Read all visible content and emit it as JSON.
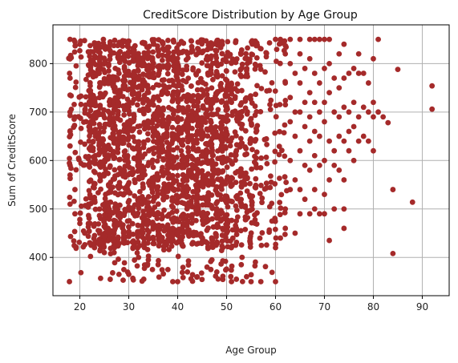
{
  "chart_data": {
    "type": "scatter",
    "title": "CreditScore Distribution by Age Group",
    "xlabel": "Age Group",
    "ylabel": "Sum of CreditScore",
    "xlim": [
      14.5,
      95.5
    ],
    "ylim": [
      321,
      880
    ],
    "xticks": [
      20,
      30,
      40,
      50,
      60,
      70,
      80,
      90
    ],
    "yticks": [
      400,
      500,
      600,
      700,
      800
    ],
    "grid": true,
    "point_color": "#a52a2a",
    "dense_region": {
      "age_min": 18,
      "age_max": 62,
      "score_min": 350,
      "score_max": 850,
      "note": "points overlap into a near-solid block"
    },
    "points": [
      {
        "x": 18,
        "y": 850
      },
      {
        "x": 18,
        "y": 810
      },
      {
        "x": 18,
        "y": 770
      },
      {
        "x": 18,
        "y": 735
      },
      {
        "x": 18,
        "y": 700
      },
      {
        "x": 18,
        "y": 660
      },
      {
        "x": 18,
        "y": 630
      },
      {
        "x": 18,
        "y": 590
      },
      {
        "x": 18,
        "y": 570
      },
      {
        "x": 18,
        "y": 510
      },
      {
        "x": 19,
        "y": 845
      },
      {
        "x": 19,
        "y": 690
      },
      {
        "x": 19,
        "y": 540
      },
      {
        "x": 19,
        "y": 490
      },
      {
        "x": 20,
        "y": 470
      },
      {
        "x": 20,
        "y": 840
      },
      {
        "x": 21,
        "y": 450
      },
      {
        "x": 22,
        "y": 430
      },
      {
        "x": 23,
        "y": 420
      },
      {
        "x": 24,
        "y": 430
      },
      {
        "x": 25,
        "y": 410
      },
      {
        "x": 27,
        "y": 410
      },
      {
        "x": 28,
        "y": 365
      },
      {
        "x": 29,
        "y": 375
      },
      {
        "x": 30,
        "y": 365
      },
      {
        "x": 32,
        "y": 400
      },
      {
        "x": 34,
        "y": 395
      },
      {
        "x": 36,
        "y": 385
      },
      {
        "x": 38,
        "y": 375
      },
      {
        "x": 39,
        "y": 350
      },
      {
        "x": 40,
        "y": 350
      },
      {
        "x": 42,
        "y": 370
      },
      {
        "x": 44,
        "y": 360
      },
      {
        "x": 46,
        "y": 380
      },
      {
        "x": 47,
        "y": 395
      },
      {
        "x": 48,
        "y": 370
      },
      {
        "x": 51,
        "y": 350
      },
      {
        "x": 52,
        "y": 355
      },
      {
        "x": 53,
        "y": 385
      },
      {
        "x": 55,
        "y": 350
      },
      {
        "x": 57,
        "y": 350
      },
      {
        "x": 60,
        "y": 350
      },
      {
        "x": 60,
        "y": 420
      },
      {
        "x": 61,
        "y": 440
      },
      {
        "x": 60,
        "y": 850
      },
      {
        "x": 61,
        "y": 850
      },
      {
        "x": 62,
        "y": 820
      },
      {
        "x": 62,
        "y": 760
      },
      {
        "x": 62,
        "y": 500
      },
      {
        "x": 62,
        "y": 460
      },
      {
        "x": 63,
        "y": 850
      },
      {
        "x": 63,
        "y": 800
      },
      {
        "x": 63,
        "y": 730
      },
      {
        "x": 63,
        "y": 680
      },
      {
        "x": 63,
        "y": 600
      },
      {
        "x": 63,
        "y": 540
      },
      {
        "x": 64,
        "y": 780
      },
      {
        "x": 64,
        "y": 700
      },
      {
        "x": 64,
        "y": 650
      },
      {
        "x": 64,
        "y": 560
      },
      {
        "x": 64,
        "y": 450
      },
      {
        "x": 65,
        "y": 850
      },
      {
        "x": 65,
        "y": 820
      },
      {
        "x": 65,
        "y": 760
      },
      {
        "x": 65,
        "y": 700
      },
      {
        "x": 65,
        "y": 620
      },
      {
        "x": 65,
        "y": 540
      },
      {
        "x": 65,
        "y": 490
      },
      {
        "x": 66,
        "y": 790
      },
      {
        "x": 66,
        "y": 720
      },
      {
        "x": 66,
        "y": 670
      },
      {
        "x": 66,
        "y": 590
      },
      {
        "x": 66,
        "y": 520
      },
      {
        "x": 67,
        "y": 850
      },
      {
        "x": 67,
        "y": 810
      },
      {
        "x": 67,
        "y": 740
      },
      {
        "x": 67,
        "y": 690
      },
      {
        "x": 67,
        "y": 640
      },
      {
        "x": 67,
        "y": 580
      },
      {
        "x": 67,
        "y": 490
      },
      {
        "x": 68,
        "y": 850
      },
      {
        "x": 68,
        "y": 780
      },
      {
        "x": 68,
        "y": 720
      },
      {
        "x": 68,
        "y": 660
      },
      {
        "x": 68,
        "y": 610
      },
      {
        "x": 68,
        "y": 540
      },
      {
        "x": 68,
        "y": 500
      },
      {
        "x": 69,
        "y": 850
      },
      {
        "x": 69,
        "y": 760
      },
      {
        "x": 69,
        "y": 700
      },
      {
        "x": 69,
        "y": 650
      },
      {
        "x": 69,
        "y": 590
      },
      {
        "x": 69,
        "y": 490
      },
      {
        "x": 70,
        "y": 850
      },
      {
        "x": 70,
        "y": 790
      },
      {
        "x": 70,
        "y": 720
      },
      {
        "x": 70,
        "y": 680
      },
      {
        "x": 70,
        "y": 600
      },
      {
        "x": 70,
        "y": 530
      },
      {
        "x": 70,
        "y": 490
      },
      {
        "x": 71,
        "y": 850
      },
      {
        "x": 71,
        "y": 800
      },
      {
        "x": 71,
        "y": 740
      },
      {
        "x": 71,
        "y": 640
      },
      {
        "x": 71,
        "y": 560
      },
      {
        "x": 71,
        "y": 435
      },
      {
        "x": 72,
        "y": 770
      },
      {
        "x": 72,
        "y": 700
      },
      {
        "x": 72,
        "y": 620
      },
      {
        "x": 72,
        "y": 590
      },
      {
        "x": 72,
        "y": 500
      },
      {
        "x": 73,
        "y": 820
      },
      {
        "x": 73,
        "y": 750
      },
      {
        "x": 73,
        "y": 690
      },
      {
        "x": 73,
        "y": 650
      },
      {
        "x": 73,
        "y": 580
      },
      {
        "x": 74,
        "y": 840
      },
      {
        "x": 74,
        "y": 770
      },
      {
        "x": 74,
        "y": 710
      },
      {
        "x": 74,
        "y": 640
      },
      {
        "x": 74,
        "y": 560
      },
      {
        "x": 74,
        "y": 500
      },
      {
        "x": 74,
        "y": 460
      },
      {
        "x": 75,
        "y": 780
      },
      {
        "x": 75,
        "y": 700
      },
      {
        "x": 75,
        "y": 660
      },
      {
        "x": 75,
        "y": 620
      },
      {
        "x": 76,
        "y": 790
      },
      {
        "x": 76,
        "y": 720
      },
      {
        "x": 76,
        "y": 670
      },
      {
        "x": 76,
        "y": 600
      },
      {
        "x": 77,
        "y": 820
      },
      {
        "x": 77,
        "y": 780
      },
      {
        "x": 77,
        "y": 690
      },
      {
        "x": 77,
        "y": 640
      },
      {
        "x": 78,
        "y": 780
      },
      {
        "x": 78,
        "y": 710
      },
      {
        "x": 78,
        "y": 650
      },
      {
        "x": 79,
        "y": 760
      },
      {
        "x": 79,
        "y": 700
      },
      {
        "x": 79,
        "y": 640
      },
      {
        "x": 80,
        "y": 810
      },
      {
        "x": 80,
        "y": 720
      },
      {
        "x": 80,
        "y": 690
      },
      {
        "x": 80,
        "y": 620
      },
      {
        "x": 81,
        "y": 850
      },
      {
        "x": 81,
        "y": 700
      },
      {
        "x": 82,
        "y": 690
      },
      {
        "x": 83,
        "y": 678
      },
      {
        "x": 84,
        "y": 540
      },
      {
        "x": 84,
        "y": 408
      },
      {
        "x": 85,
        "y": 788
      },
      {
        "x": 88,
        "y": 514
      },
      {
        "x": 92,
        "y": 754
      },
      {
        "x": 92,
        "y": 706
      }
    ]
  }
}
